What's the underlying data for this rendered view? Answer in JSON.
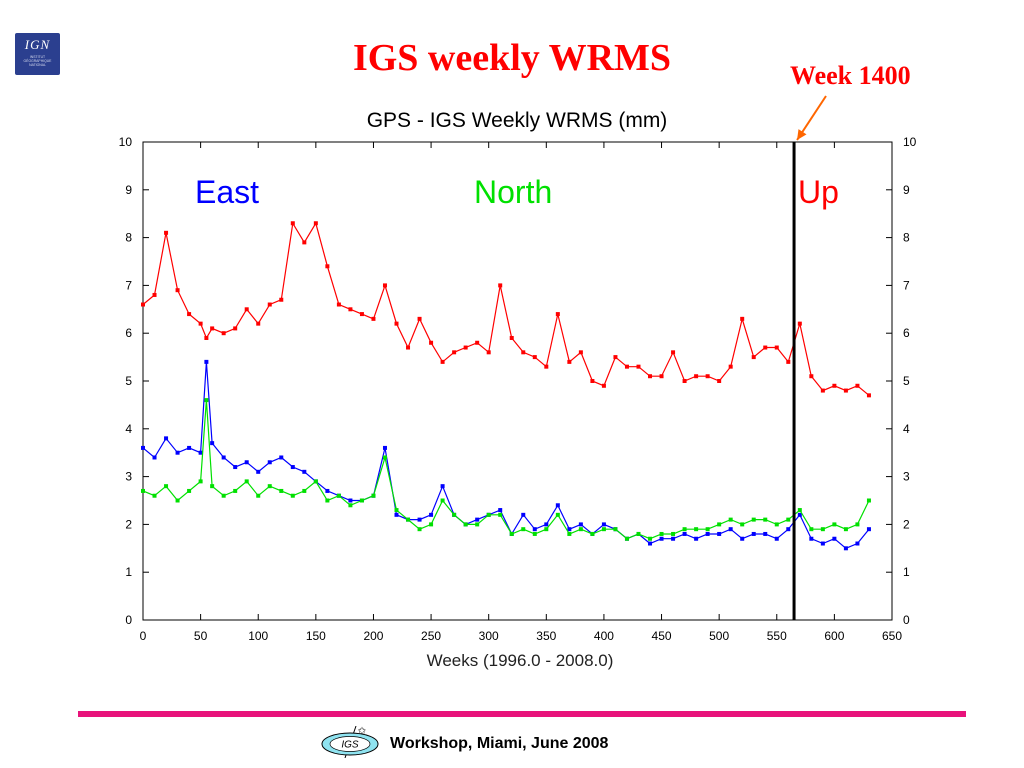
{
  "logo": {
    "ign_text": "IGN",
    "ign_subtext": "INSTITUT GÉOGRAPHIQUE NATIONAL"
  },
  "slide_title": "IGS weekly WRMS",
  "annotation": {
    "text": "Week 1400",
    "arrow_color": "#ff6600"
  },
  "footer": {
    "text": "Workshop, Miami, June 2008",
    "igs_logo_text": "IGS",
    "bar_color": "#e8137b"
  },
  "chart_data": {
    "type": "line",
    "title": "GPS - IGS Weekly WRMS (mm)",
    "xlabel": "Weeks (1996.0 - 2008.0)",
    "ylabel": "",
    "xlim": [
      0,
      650
    ],
    "ylim": [
      0,
      10
    ],
    "xticks": [
      0,
      50,
      100,
      150,
      200,
      250,
      300,
      350,
      400,
      450,
      500,
      550,
      600,
      650
    ],
    "yticks": [
      0,
      1,
      2,
      3,
      4,
      5,
      6,
      7,
      8,
      9,
      10
    ],
    "marker_line_x": 565,
    "x": [
      0,
      10,
      20,
      30,
      40,
      50,
      55,
      60,
      70,
      80,
      90,
      100,
      110,
      120,
      130,
      140,
      150,
      160,
      170,
      180,
      190,
      200,
      210,
      220,
      230,
      240,
      250,
      260,
      270,
      280,
      290,
      300,
      310,
      320,
      330,
      340,
      350,
      360,
      370,
      380,
      390,
      400,
      410,
      420,
      430,
      440,
      450,
      460,
      470,
      480,
      490,
      500,
      510,
      520,
      530,
      540,
      550,
      560,
      570,
      580,
      590,
      600,
      610,
      620,
      630
    ],
    "series": [
      {
        "name": "East",
        "color": "#0000ff",
        "values": [
          3.6,
          3.4,
          3.8,
          3.5,
          3.6,
          3.5,
          5.4,
          3.7,
          3.4,
          3.2,
          3.3,
          3.1,
          3.3,
          3.4,
          3.2,
          3.1,
          2.9,
          2.7,
          2.6,
          2.5,
          2.5,
          2.6,
          3.6,
          2.2,
          2.1,
          2.1,
          2.2,
          2.8,
          2.2,
          2.0,
          2.1,
          2.2,
          2.3,
          1.8,
          2.2,
          1.9,
          2.0,
          2.4,
          1.9,
          2.0,
          1.8,
          2.0,
          1.9,
          1.7,
          1.8,
          1.6,
          1.7,
          1.7,
          1.8,
          1.7,
          1.8,
          1.8,
          1.9,
          1.7,
          1.8,
          1.8,
          1.7,
          1.9,
          2.2,
          1.7,
          1.6,
          1.7,
          1.5,
          1.6,
          1.9
        ]
      },
      {
        "name": "North",
        "color": "#00e000",
        "values": [
          2.7,
          2.6,
          2.8,
          2.5,
          2.7,
          2.9,
          4.6,
          2.8,
          2.6,
          2.7,
          2.9,
          2.6,
          2.8,
          2.7,
          2.6,
          2.7,
          2.9,
          2.5,
          2.6,
          2.4,
          2.5,
          2.6,
          3.4,
          2.3,
          2.1,
          1.9,
          2.0,
          2.5,
          2.2,
          2.0,
          2.0,
          2.2,
          2.2,
          1.8,
          1.9,
          1.8,
          1.9,
          2.2,
          1.8,
          1.9,
          1.8,
          1.9,
          1.9,
          1.7,
          1.8,
          1.7,
          1.8,
          1.8,
          1.9,
          1.9,
          1.9,
          2.0,
          2.1,
          2.0,
          2.1,
          2.1,
          2.0,
          2.1,
          2.3,
          1.9,
          1.9,
          2.0,
          1.9,
          2.0,
          2.5
        ]
      },
      {
        "name": "Up",
        "color": "#ff0000",
        "values": [
          6.6,
          6.8,
          8.1,
          6.9,
          6.4,
          6.2,
          5.9,
          6.1,
          6.0,
          6.1,
          6.5,
          6.2,
          6.6,
          6.7,
          8.3,
          7.9,
          8.3,
          7.4,
          6.6,
          6.5,
          6.4,
          6.3,
          7.0,
          6.2,
          5.7,
          6.3,
          5.8,
          5.4,
          5.6,
          5.7,
          5.8,
          5.6,
          7.0,
          5.9,
          5.6,
          5.5,
          5.3,
          6.4,
          5.4,
          5.6,
          5.0,
          4.9,
          5.5,
          5.3,
          5.3,
          5.1,
          5.1,
          5.6,
          5.0,
          5.1,
          5.1,
          5.0,
          5.3,
          6.3,
          5.5,
          5.7,
          5.7,
          5.4,
          6.2,
          5.1,
          4.8,
          4.9,
          4.8,
          4.9,
          4.7
        ]
      }
    ]
  }
}
